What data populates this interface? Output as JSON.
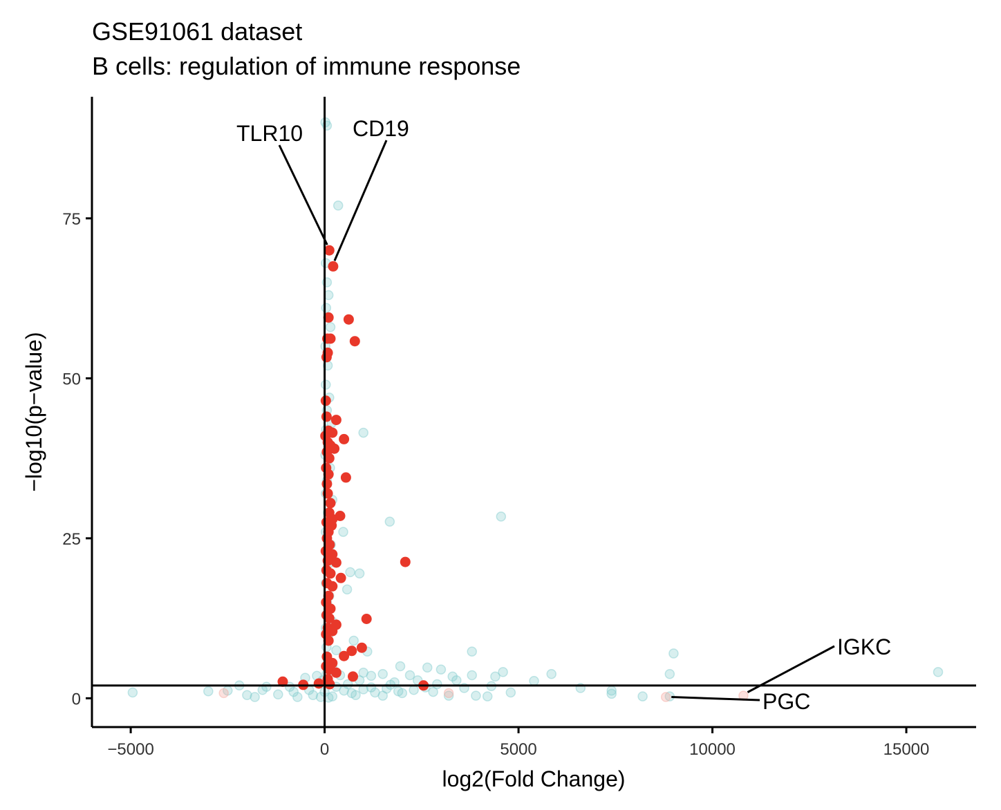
{
  "chart_data": {
    "type": "scatter",
    "title": "GSE91061 dataset",
    "subtitle": "B cells: regulation of immune response",
    "xlabel": "log2(Fold Change)",
    "ylabel": "−log10(p−value)",
    "xlim": [
      -6000,
      16800
    ],
    "ylim": [
      -4.5,
      94
    ],
    "x_ticks": [
      -5000,
      0,
      5000,
      10000,
      15000
    ],
    "x_tick_labels": [
      "−5000",
      "0",
      "5000",
      "10000",
      "15000"
    ],
    "y_ticks": [
      0,
      25,
      50,
      75
    ],
    "y_tick_labels": [
      "0",
      "25",
      "50",
      "75"
    ],
    "grid": false,
    "legend": "none",
    "reference_lines": {
      "vertical_x": 0,
      "horizontal_y": 2
    },
    "colors": {
      "teal": "#7fc9cb",
      "red": "#e8382a",
      "pink": "#f5a9a0",
      "line": "#000000"
    },
    "series": [
      {
        "color": "red",
        "points": [
          [
            120,
            70
          ],
          [
            220,
            67.5
          ],
          [
            100,
            59.5
          ],
          [
            620,
            59.2
          ],
          [
            780,
            55.8
          ],
          [
            70,
            56.2
          ],
          [
            150,
            56.2
          ],
          [
            50,
            53.3
          ],
          [
            80,
            54
          ],
          [
            30,
            46.5
          ],
          [
            50,
            44
          ],
          [
            300,
            43.5
          ],
          [
            100,
            41.8
          ],
          [
            200,
            41.5
          ],
          [
            500,
            40.5
          ],
          [
            20,
            41
          ],
          [
            80,
            40
          ],
          [
            150,
            39.5
          ],
          [
            250,
            39
          ],
          [
            60,
            38.5
          ],
          [
            120,
            37.5
          ],
          [
            40,
            36
          ],
          [
            100,
            35
          ],
          [
            550,
            34.5
          ],
          [
            60,
            33.5
          ],
          [
            80,
            32
          ],
          [
            150,
            30.5
          ],
          [
            120,
            29
          ],
          [
            400,
            28.5
          ],
          [
            200,
            28
          ],
          [
            50,
            27.5
          ],
          [
            180,
            27
          ],
          [
            100,
            26
          ],
          [
            60,
            25
          ],
          [
            130,
            24
          ],
          [
            30,
            23
          ],
          [
            200,
            22.5
          ],
          [
            80,
            21.5
          ],
          [
            300,
            21.2
          ],
          [
            2080,
            21.3
          ],
          [
            50,
            20
          ],
          [
            150,
            19.5
          ],
          [
            420,
            18.8
          ],
          [
            60,
            18
          ],
          [
            200,
            17.5
          ],
          [
            100,
            16
          ],
          [
            40,
            15
          ],
          [
            150,
            14
          ],
          [
            50,
            13
          ],
          [
            1080,
            12.4
          ],
          [
            120,
            12.5
          ],
          [
            300,
            11.5
          ],
          [
            80,
            11
          ],
          [
            200,
            10.5
          ],
          [
            40,
            10
          ],
          [
            100,
            9
          ],
          [
            960,
            7.9
          ],
          [
            700,
            7.4
          ],
          [
            500,
            6.6
          ],
          [
            60,
            6.5
          ],
          [
            200,
            5.5
          ],
          [
            40,
            5
          ],
          [
            120,
            4.5
          ],
          [
            300,
            4
          ],
          [
            730,
            3.4
          ],
          [
            80,
            3
          ],
          [
            -1080,
            2.6
          ],
          [
            -550,
            2.1
          ],
          [
            -150,
            2.3
          ],
          [
            130,
            2.2
          ],
          [
            2550,
            2
          ]
        ]
      },
      {
        "color": "pink",
        "points": [
          [
            -2600,
            0.8
          ],
          [
            3200,
            0.8
          ],
          [
            8800,
            0.2
          ],
          [
            10800,
            0.4
          ]
        ]
      },
      {
        "color": "teal",
        "points": [
          [
            20,
            90
          ],
          [
            60,
            89.5
          ],
          [
            350,
            77
          ],
          [
            30,
            68
          ],
          [
            60,
            65
          ],
          [
            100,
            63
          ],
          [
            40,
            61
          ],
          [
            150,
            58
          ],
          [
            20,
            55
          ],
          [
            80,
            52
          ],
          [
            30,
            49
          ],
          [
            120,
            47
          ],
          [
            60,
            45
          ],
          [
            180,
            43
          ],
          [
            40,
            42
          ],
          [
            90,
            40
          ],
          [
            1000,
            41.5
          ],
          [
            20,
            38
          ],
          [
            140,
            36
          ],
          [
            60,
            34
          ],
          [
            30,
            32
          ],
          [
            200,
            31
          ],
          [
            80,
            29
          ],
          [
            120,
            27
          ],
          [
            1680,
            27.6
          ],
          [
            4550,
            28.4
          ],
          [
            30,
            26
          ],
          [
            480,
            26
          ],
          [
            160,
            24
          ],
          [
            60,
            23
          ],
          [
            100,
            21
          ],
          [
            40,
            20
          ],
          [
            660,
            19.7
          ],
          [
            900,
            19.5
          ],
          [
            30,
            18
          ],
          [
            580,
            17
          ],
          [
            120,
            16
          ],
          [
            60,
            15
          ],
          [
            40,
            13
          ],
          [
            200,
            12
          ],
          [
            30,
            11
          ],
          [
            100,
            10
          ],
          [
            750,
            9
          ],
          [
            50,
            8
          ],
          [
            300,
            7.5
          ],
          [
            1100,
            7.3
          ],
          [
            3800,
            7.3
          ],
          [
            9000,
            7
          ],
          [
            80,
            6
          ],
          [
            200,
            5
          ],
          [
            1950,
            5
          ],
          [
            2650,
            4.8
          ],
          [
            3000,
            4.5
          ],
          [
            4600,
            4.1
          ],
          [
            5850,
            3.8
          ],
          [
            8900,
            3.8
          ],
          [
            15820,
            4.1
          ],
          [
            1000,
            4
          ],
          [
            1200,
            3.5
          ],
          [
            1500,
            3.8
          ],
          [
            2200,
            3.6
          ],
          [
            3300,
            3.4
          ],
          [
            3800,
            3.6
          ],
          [
            4400,
            3.4
          ],
          [
            3400,
            2.8
          ],
          [
            5400,
            2.7
          ],
          [
            1800,
            2.5
          ],
          [
            900,
            2.8
          ],
          [
            -500,
            3.2
          ],
          [
            -200,
            3.5
          ],
          [
            400,
            3.6
          ],
          [
            2400,
            2.8
          ],
          [
            600,
            2.2
          ],
          [
            -1500,
            1.8
          ],
          [
            -2500,
            1.2
          ],
          [
            -3000,
            1.1
          ],
          [
            -4950,
            0.9
          ],
          [
            -2000,
            0.5
          ],
          [
            -1800,
            0.2
          ],
          [
            -1200,
            0.6
          ],
          [
            -800,
            1.0
          ],
          [
            -300,
            0.5
          ],
          [
            200,
            0.3
          ],
          [
            800,
            0.5
          ],
          [
            1500,
            0.4
          ],
          [
            2000,
            0.8
          ],
          [
            2800,
            1.0
          ],
          [
            3200,
            0.4
          ],
          [
            3900,
            0.4
          ],
          [
            4200,
            0.3
          ],
          [
            4800,
            0.9
          ],
          [
            6600,
            1.6
          ],
          [
            7400,
            1.2
          ],
          [
            7400,
            0.7
          ],
          [
            8200,
            0.3
          ],
          [
            8900,
            0.3
          ],
          [
            1200,
            1.7
          ],
          [
            1700,
            2.1
          ],
          [
            2600,
            1.7
          ],
          [
            2900,
            2.2
          ],
          [
            -2200,
            2.0
          ],
          [
            -1600,
            1.3
          ],
          [
            -900,
            1.8
          ],
          [
            -700,
            0.2
          ],
          [
            -400,
            1.3
          ],
          [
            0,
            1.0
          ],
          [
            300,
            1.8
          ],
          [
            500,
            1.2
          ],
          [
            700,
            0.8
          ],
          [
            1000,
            1.4
          ],
          [
            1300,
            0.9
          ],
          [
            1600,
            1.5
          ],
          [
            1900,
            1.1
          ],
          [
            2300,
            1.3
          ],
          [
            3600,
            1.6
          ],
          [
            4300,
            1.9
          ],
          [
            -100,
            0.2
          ],
          [
            100,
            0.1
          ],
          [
            -50,
            2.8
          ],
          [
            50,
            3.8
          ]
        ]
      }
    ],
    "annotations": [
      {
        "label": "TLR10",
        "x": 120,
        "y": 70
      },
      {
        "label": "CD19",
        "x": 220,
        "y": 67.5
      },
      {
        "label": "IGKC",
        "x": 10800,
        "y": 0.4
      },
      {
        "label": "PGC",
        "x": 8800,
        "y": 0.2
      }
    ]
  }
}
